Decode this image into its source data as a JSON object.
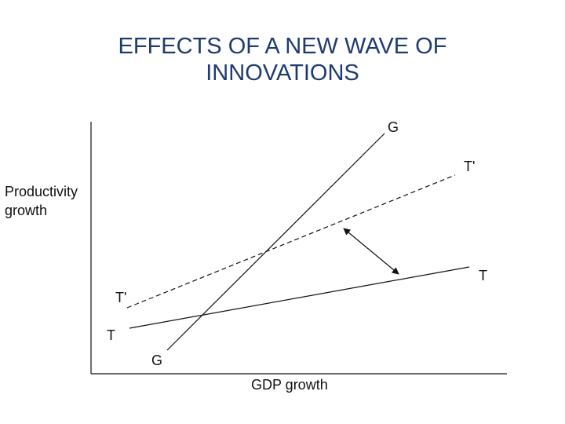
{
  "title": {
    "line1": "EFFECTS OF A NEW WAVE OF",
    "line2": "INNOVATIONS"
  },
  "axes": {
    "y_label_line1": "Productivity",
    "y_label_line2": "growth",
    "x_label": "GDP growth"
  },
  "curves": {
    "g_start": "G",
    "g_end": "G",
    "t_start": "T",
    "t_end": "T",
    "tprime_start": "T'",
    "tprime_end": "T'"
  },
  "icons": {
    "shift_arrow": "double-headed-arrow-icon"
  }
}
